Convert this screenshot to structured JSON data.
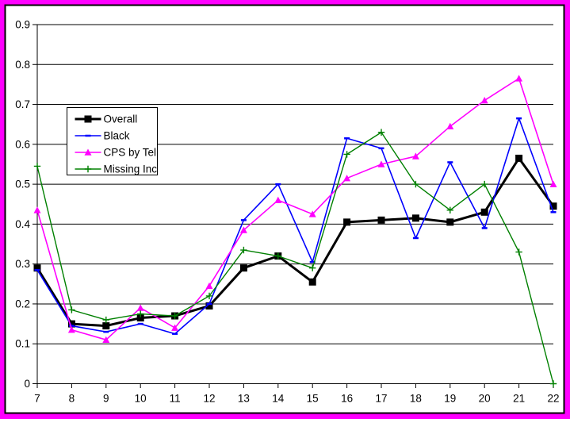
{
  "frame": {
    "outer_border_color": "#FF00FF",
    "inner_border_color": "#000000",
    "background": "#FFFFFF",
    "plot_background": "#FFFFFF",
    "gridline_color": "#000000"
  },
  "legend": {
    "position": "upper-left-inside",
    "border_color": "#000000",
    "background": "#FFFFFF"
  },
  "chart_data": {
    "type": "line",
    "title": "",
    "xlabel": "",
    "ylabel": "",
    "grid": "horizontal",
    "legend_position": "upper-left-inside",
    "categories": [
      7,
      8,
      9,
      10,
      11,
      12,
      13,
      14,
      15,
      16,
      17,
      18,
      19,
      20,
      21,
      22
    ],
    "ylim": [
      0,
      0.9
    ],
    "y_tick_step": 0.1,
    "y_tick_labels": [
      "0",
      "0.1",
      "0.2",
      "0.3",
      "0.4",
      "0.5",
      "0.6",
      "0.7",
      "0.8",
      "0.9"
    ],
    "series": [
      {
        "name": "Overall",
        "color": "#000000",
        "marker": "square-marker",
        "line_width": 3,
        "values": [
          0.29,
          0.15,
          0.145,
          0.165,
          0.17,
          0.195,
          0.29,
          0.32,
          0.255,
          0.405,
          0.41,
          0.415,
          0.405,
          0.43,
          0.565,
          0.445
        ]
      },
      {
        "name": "Black",
        "color": "#0000FF",
        "marker": "dash-marker",
        "line_width": 1.6,
        "values": [
          0.285,
          0.145,
          0.13,
          0.15,
          0.125,
          0.2,
          0.41,
          0.5,
          0.305,
          0.615,
          0.59,
          0.365,
          0.555,
          0.39,
          0.665,
          0.43
        ]
      },
      {
        "name": "CPS by Tel",
        "color": "#FF00FF",
        "marker": "triangle-marker",
        "line_width": 1.6,
        "values": [
          0.435,
          0.135,
          0.11,
          0.19,
          0.14,
          0.245,
          0.385,
          0.46,
          0.425,
          0.515,
          0.55,
          0.57,
          0.645,
          0.71,
          0.765,
          0.5
        ]
      },
      {
        "name": "Missing Inc",
        "color": "#008000",
        "marker": "plus-marker",
        "line_width": 1.4,
        "values": [
          0.545,
          0.185,
          0.16,
          0.175,
          0.17,
          0.22,
          0.335,
          0.32,
          0.29,
          0.575,
          0.63,
          0.5,
          0.435,
          0.5,
          0.33,
          0.0
        ]
      }
    ]
  }
}
